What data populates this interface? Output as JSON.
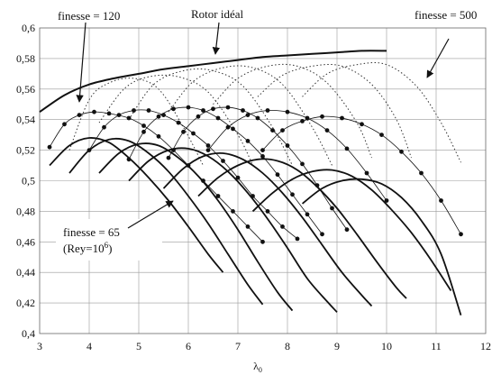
{
  "chart_data": {
    "type": "line",
    "title": "",
    "xlabel": "λ",
    "xlabel_subscript": "0",
    "ylabel": "",
    "xlim": [
      3,
      12
    ],
    "ylim": [
      0.4,
      0.6
    ],
    "x_ticks": [
      "3",
      "4",
      "5",
      "6",
      "7",
      "8",
      "9",
      "10",
      "11",
      "12"
    ],
    "y_ticks": [
      "0,4",
      "0,42",
      "0,44",
      "0,46",
      "0,48",
      "0,5",
      "0,52",
      "0,54",
      "0,56",
      "0,58",
      "0,6"
    ],
    "grid": true,
    "annotations": [
      {
        "text": "finesse = 120"
      },
      {
        "text": "Rotor idéal"
      },
      {
        "text": "finesse = 500"
      },
      {
        "text": "finesse = 65"
      },
      {
        "text": "(Rey=10",
        "superscript": "6",
        "suffix": ")"
      }
    ],
    "series": [
      {
        "style": "ideal",
        "x": [
          3.0,
          3.5,
          4.0,
          4.5,
          5.0,
          5.5,
          6.0,
          6.5,
          7.0,
          7.5,
          8.0,
          8.5,
          9.0,
          9.5,
          10.0
        ],
        "y": [
          0.545,
          0.556,
          0.563,
          0.567,
          0.57,
          0.573,
          0.575,
          0.577,
          0.579,
          0.581,
          0.582,
          0.583,
          0.584,
          0.585,
          0.585
        ]
      },
      {
        "style": "dotted",
        "x": [
          3.6,
          4.0,
          4.4,
          4.9,
          5.4,
          5.9,
          6.3
        ],
        "y": [
          0.52,
          0.553,
          0.564,
          0.567,
          0.56,
          0.535,
          0.51
        ]
      },
      {
        "style": "dotted",
        "x": [
          4.2,
          4.7,
          5.2,
          5.8,
          6.4,
          7.0,
          7.3
        ],
        "y": [
          0.538,
          0.56,
          0.568,
          0.568,
          0.558,
          0.53,
          0.51
        ]
      },
      {
        "style": "dotted",
        "x": [
          4.8,
          5.3,
          5.9,
          6.5,
          7.1,
          7.7,
          8.1
        ],
        "y": [
          0.54,
          0.563,
          0.572,
          0.572,
          0.562,
          0.535,
          0.51
        ]
      },
      {
        "style": "dotted",
        "x": [
          5.6,
          6.1,
          6.7,
          7.3,
          7.9,
          8.5,
          8.9
        ],
        "y": [
          0.545,
          0.565,
          0.574,
          0.574,
          0.563,
          0.535,
          0.51
        ]
      },
      {
        "style": "dotted",
        "x": [
          6.5,
          7.0,
          7.6,
          8.2,
          8.8,
          9.4,
          9.7
        ],
        "y": [
          0.55,
          0.567,
          0.575,
          0.575,
          0.564,
          0.538,
          0.515
        ]
      },
      {
        "style": "dotted",
        "x": [
          7.4,
          7.9,
          8.5,
          9.1,
          9.7,
          10.2,
          10.5
        ],
        "y": [
          0.555,
          0.569,
          0.575,
          0.575,
          0.563,
          0.54,
          0.515
        ]
      },
      {
        "style": "dotted",
        "x": [
          8.3,
          8.8,
          9.4,
          10.0,
          10.6,
          11.1,
          11.5
        ],
        "y": [
          0.555,
          0.57,
          0.576,
          0.576,
          0.562,
          0.538,
          0.512
        ]
      },
      {
        "style": "markers",
        "x": [
          3.2,
          3.5,
          3.8,
          4.1,
          4.4,
          4.8,
          5.1,
          5.4,
          5.7,
          6.0,
          6.3,
          6.6,
          6.9,
          7.2,
          7.5
        ],
        "y": [
          0.522,
          0.537,
          0.543,
          0.545,
          0.544,
          0.541,
          0.536,
          0.529,
          0.52,
          0.51,
          0.5,
          0.49,
          0.48,
          0.47,
          0.46
        ]
      },
      {
        "style": "markers",
        "x": [
          4.0,
          4.3,
          4.6,
          4.9,
          5.2,
          5.5,
          5.8,
          6.1,
          6.4,
          6.7,
          7.0,
          7.3,
          7.6,
          7.9,
          8.2
        ],
        "y": [
          0.52,
          0.535,
          0.543,
          0.546,
          0.546,
          0.543,
          0.538,
          0.531,
          0.523,
          0.513,
          0.502,
          0.49,
          0.48,
          0.47,
          0.462
        ]
      },
      {
        "style": "markers",
        "x": [
          4.8,
          5.1,
          5.4,
          5.7,
          6.0,
          6.3,
          6.6,
          6.9,
          7.2,
          7.5,
          7.8,
          8.1,
          8.4,
          8.7
        ],
        "y": [
          0.514,
          0.532,
          0.542,
          0.547,
          0.548,
          0.546,
          0.541,
          0.534,
          0.526,
          0.516,
          0.504,
          0.491,
          0.478,
          0.465
        ]
      },
      {
        "style": "markers",
        "x": [
          5.6,
          5.9,
          6.2,
          6.5,
          6.8,
          7.1,
          7.4,
          7.7,
          8.0,
          8.3,
          8.6,
          8.9,
          9.2
        ],
        "y": [
          0.515,
          0.532,
          0.542,
          0.547,
          0.548,
          0.546,
          0.541,
          0.533,
          0.523,
          0.511,
          0.497,
          0.482,
          0.468
        ]
      },
      {
        "style": "markers",
        "x": [
          6.4,
          6.8,
          7.2,
          7.6,
          8.0,
          8.4,
          8.8,
          9.2,
          9.6,
          10.0
        ],
        "y": [
          0.52,
          0.535,
          0.543,
          0.546,
          0.545,
          0.541,
          0.533,
          0.521,
          0.505,
          0.487
        ]
      },
      {
        "style": "markers",
        "x": [
          7.5,
          7.9,
          8.3,
          8.7,
          9.1,
          9.5,
          9.9,
          10.3,
          10.7,
          11.1,
          11.5
        ],
        "y": [
          0.52,
          0.533,
          0.539,
          0.542,
          0.541,
          0.537,
          0.53,
          0.519,
          0.505,
          0.487,
          0.465
        ]
      },
      {
        "style": "thick",
        "x": [
          3.2,
          3.6,
          4.0,
          4.4,
          4.8,
          5.2,
          5.6,
          6.0,
          6.4,
          6.7
        ],
        "y": [
          0.51,
          0.523,
          0.528,
          0.525,
          0.515,
          0.502,
          0.487,
          0.47,
          0.452,
          0.44
        ]
      },
      {
        "style": "thick",
        "x": [
          3.6,
          4.0,
          4.4,
          4.8,
          5.2,
          5.6,
          6.0,
          6.4,
          6.8,
          7.2,
          7.5
        ],
        "y": [
          0.505,
          0.52,
          0.527,
          0.526,
          0.518,
          0.506,
          0.49,
          0.472,
          0.452,
          0.432,
          0.419
        ]
      },
      {
        "style": "thick",
        "x": [
          4.2,
          4.6,
          5.0,
          5.4,
          5.8,
          6.2,
          6.6,
          7.0,
          7.4,
          7.8,
          8.1
        ],
        "y": [
          0.505,
          0.518,
          0.524,
          0.523,
          0.515,
          0.503,
          0.487,
          0.468,
          0.447,
          0.427,
          0.415
        ]
      },
      {
        "style": "thick",
        "x": [
          4.8,
          5.2,
          5.6,
          6.0,
          6.4,
          6.8,
          7.2,
          7.6,
          8.0,
          8.4,
          8.8,
          9.0
        ],
        "y": [
          0.5,
          0.513,
          0.52,
          0.521,
          0.516,
          0.506,
          0.492,
          0.475,
          0.456,
          0.436,
          0.421,
          0.414
        ]
      },
      {
        "style": "thick",
        "x": [
          5.5,
          5.9,
          6.3,
          6.7,
          7.1,
          7.5,
          7.9,
          8.3,
          8.7,
          9.1,
          9.5,
          9.7
        ],
        "y": [
          0.495,
          0.508,
          0.516,
          0.518,
          0.514,
          0.505,
          0.492,
          0.476,
          0.458,
          0.44,
          0.425,
          0.418
        ]
      },
      {
        "style": "thick",
        "x": [
          6.2,
          6.6,
          7.0,
          7.4,
          7.8,
          8.2,
          8.6,
          9.0,
          9.4,
          9.8,
          10.2,
          10.4
        ],
        "y": [
          0.49,
          0.502,
          0.51,
          0.514,
          0.513,
          0.507,
          0.496,
          0.482,
          0.465,
          0.447,
          0.43,
          0.423
        ]
      },
      {
        "style": "thick",
        "x": [
          7.3,
          7.7,
          8.1,
          8.5,
          8.9,
          9.3,
          9.7,
          10.1,
          10.5,
          10.9,
          11.3
        ],
        "y": [
          0.48,
          0.492,
          0.501,
          0.506,
          0.507,
          0.503,
          0.494,
          0.481,
          0.466,
          0.448,
          0.428
        ]
      },
      {
        "style": "thick",
        "x": [
          8.3,
          8.7,
          9.1,
          9.5,
          9.9,
          10.3,
          10.7,
          11.1,
          11.5
        ],
        "y": [
          0.485,
          0.495,
          0.5,
          0.501,
          0.498,
          0.489,
          0.474,
          0.452,
          0.412
        ]
      }
    ],
    "colors": {
      "background": "#ffffff",
      "line": "#111111",
      "dotted": "#333333",
      "grid": "#9a9a9a",
      "frame": "#666666"
    }
  }
}
